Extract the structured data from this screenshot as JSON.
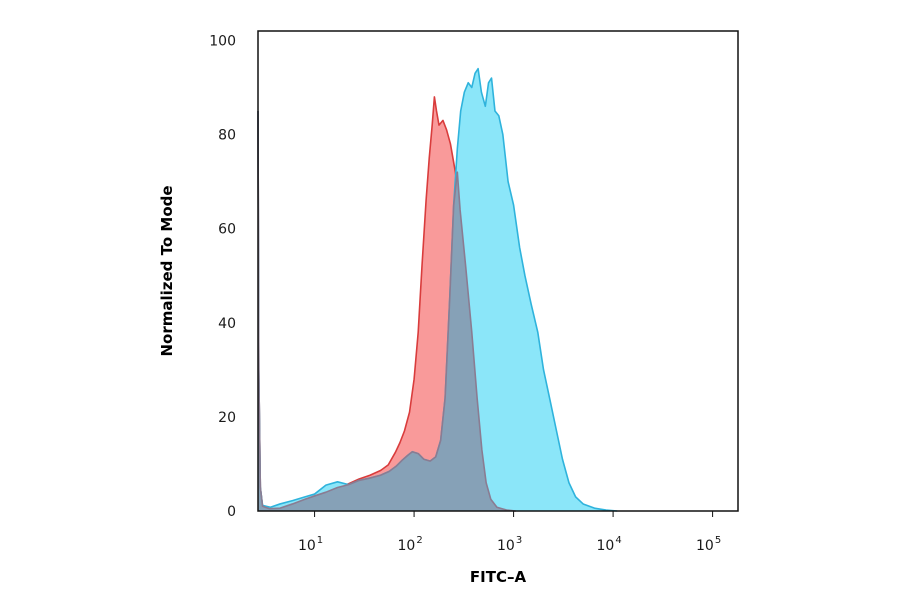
{
  "chart_data": {
    "type": "area",
    "title": "",
    "xlabel": "FITC–A",
    "ylabel": "Normalized To Mode",
    "x_scale": "log",
    "xlim": [
      2.7,
      180000
    ],
    "ylim": [
      0,
      102
    ],
    "x_ticks": [
      {
        "value": 10,
        "base": "10",
        "exp": "1"
      },
      {
        "value": 100,
        "base": "10",
        "exp": "2"
      },
      {
        "value": 1000,
        "base": "10",
        "exp": "3"
      },
      {
        "value": 10000,
        "base": "10",
        "exp": "4"
      },
      {
        "value": 100000,
        "base": "10",
        "exp": "5"
      }
    ],
    "y_ticks": [
      {
        "value": 0,
        "label": "0"
      },
      {
        "value": 20,
        "label": "20"
      },
      {
        "value": 40,
        "label": "40"
      },
      {
        "value": 60,
        "label": "60"
      },
      {
        "value": 80,
        "label": "80"
      },
      {
        "value": 100,
        "label": "100"
      }
    ],
    "grid": false,
    "legend": "none",
    "series": [
      {
        "fill": "#f99a9a",
        "stroke": "#d93c3c",
        "points": [
          [
            2.7,
            85
          ],
          [
            2.75,
            30
          ],
          [
            2.85,
            5
          ],
          [
            3.0,
            1
          ],
          [
            3.5,
            0.5
          ],
          [
            4.5,
            0.6
          ],
          [
            6,
            1.5
          ],
          [
            8,
            2.5
          ],
          [
            10,
            3.2
          ],
          [
            13,
            4.0
          ],
          [
            17,
            5.0
          ],
          [
            22,
            5.8
          ],
          [
            28,
            6.8
          ],
          [
            36,
            7.6
          ],
          [
            46,
            8.6
          ],
          [
            55,
            9.8
          ],
          [
            65,
            12.5
          ],
          [
            72,
            14.5
          ],
          [
            80,
            17
          ],
          [
            90,
            21
          ],
          [
            100,
            28
          ],
          [
            110,
            38
          ],
          [
            120,
            52
          ],
          [
            132,
            66
          ],
          [
            142,
            75
          ],
          [
            152,
            82
          ],
          [
            160,
            88
          ],
          [
            168,
            85
          ],
          [
            178,
            82
          ],
          [
            195,
            83
          ],
          [
            212,
            81
          ],
          [
            232,
            78
          ],
          [
            260,
            72
          ],
          [
            290,
            64
          ],
          [
            330,
            52
          ],
          [
            380,
            38
          ],
          [
            430,
            24
          ],
          [
            480,
            13
          ],
          [
            530,
            6
          ],
          [
            590,
            2.5
          ],
          [
            680,
            0.8
          ],
          [
            850,
            0.2
          ],
          [
            1050,
            0
          ]
        ]
      },
      {
        "fill": "#8be6f9",
        "stroke": "#2fb3dc",
        "points": [
          [
            2.7,
            85
          ],
          [
            2.75,
            30
          ],
          [
            2.85,
            5
          ],
          [
            3.0,
            1.2
          ],
          [
            3.6,
            0.8
          ],
          [
            4.5,
            1.5
          ],
          [
            6,
            2.2
          ],
          [
            8,
            3.0
          ],
          [
            10,
            3.6
          ],
          [
            13,
            5.5
          ],
          [
            17,
            6.2
          ],
          [
            22,
            5.6
          ],
          [
            28,
            6.5
          ],
          [
            36,
            7.0
          ],
          [
            46,
            7.6
          ],
          [
            56,
            8.4
          ],
          [
            66,
            9.5
          ],
          [
            76,
            10.8
          ],
          [
            86,
            11.8
          ],
          [
            96,
            12.6
          ],
          [
            110,
            12.2
          ],
          [
            125,
            11.0
          ],
          [
            145,
            10.6
          ],
          [
            165,
            11.5
          ],
          [
            185,
            15
          ],
          [
            205,
            24
          ],
          [
            228,
            45
          ],
          [
            250,
            65
          ],
          [
            272,
            77
          ],
          [
            294,
            85
          ],
          [
            320,
            89
          ],
          [
            350,
            91
          ],
          [
            380,
            90
          ],
          [
            410,
            93
          ],
          [
            440,
            94
          ],
          [
            475,
            89
          ],
          [
            520,
            86
          ],
          [
            560,
            91
          ],
          [
            600,
            92
          ],
          [
            650,
            85
          ],
          [
            710,
            84
          ],
          [
            780,
            80
          ],
          [
            880,
            70
          ],
          [
            1000,
            65
          ],
          [
            1150,
            56
          ],
          [
            1300,
            50
          ],
          [
            1500,
            44
          ],
          [
            1750,
            38
          ],
          [
            2000,
            30
          ],
          [
            2300,
            24
          ],
          [
            2700,
            17
          ],
          [
            3100,
            11
          ],
          [
            3600,
            6
          ],
          [
            4200,
            3
          ],
          [
            5000,
            1.5
          ],
          [
            6500,
            0.6
          ],
          [
            8500,
            0.2
          ],
          [
            11000,
            0
          ]
        ]
      },
      {
        "fill": "#86a1b7",
        "stroke": "#8a7c92",
        "points": [
          [
            2.7,
            85
          ],
          [
            2.75,
            30
          ],
          [
            2.85,
            5
          ],
          [
            3.0,
            1
          ],
          [
            3.5,
            0.5
          ],
          [
            4.5,
            0.6
          ],
          [
            6,
            1.5
          ],
          [
            8,
            2.5
          ],
          [
            10,
            3.2
          ],
          [
            13,
            4.0
          ],
          [
            17,
            5.0
          ],
          [
            22,
            5.6
          ],
          [
            28,
            6.5
          ],
          [
            36,
            7.0
          ],
          [
            46,
            7.6
          ],
          [
            56,
            8.4
          ],
          [
            66,
            9.5
          ],
          [
            76,
            10.8
          ],
          [
            86,
            11.8
          ],
          [
            96,
            12.6
          ],
          [
            110,
            12.2
          ],
          [
            125,
            11.0
          ],
          [
            145,
            10.6
          ],
          [
            165,
            11.5
          ],
          [
            185,
            15
          ],
          [
            205,
            24
          ],
          [
            228,
            45
          ],
          [
            250,
            65
          ],
          [
            272,
            72
          ],
          [
            290,
            64
          ],
          [
            330,
            52
          ],
          [
            380,
            38
          ],
          [
            430,
            24
          ],
          [
            480,
            13
          ],
          [
            530,
            6
          ],
          [
            590,
            2.5
          ],
          [
            680,
            0.8
          ],
          [
            850,
            0.2
          ],
          [
            1050,
            0
          ]
        ]
      }
    ]
  }
}
